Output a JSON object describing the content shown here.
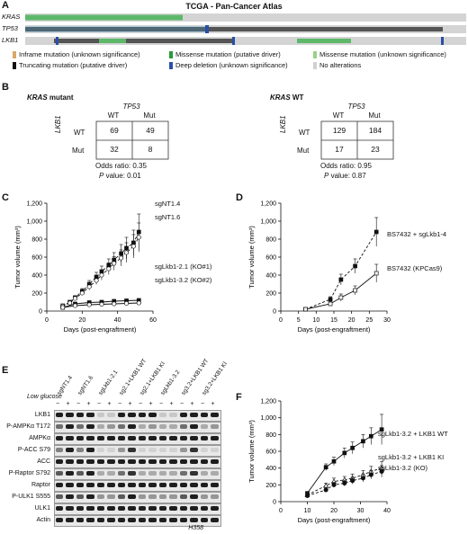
{
  "panelA": {
    "letter": "A",
    "title": "TCGA - Pan-Cancer Atlas",
    "genes": [
      "KRAS",
      "TP53",
      "LKB1"
    ],
    "legend": [
      {
        "label": "Inframe mutation (unknown significance)",
        "color": "#d9a86a"
      },
      {
        "label": "Missense mutation (putative driver)",
        "color": "#2b9a3a"
      },
      {
        "label": "Missense mutation (unknown significance)",
        "color": "#98d08a"
      },
      {
        "label": "Truncating mutation (putative driver)",
        "color": "#111111"
      },
      {
        "label": "Deep deletion (unknown significance)",
        "color": "#2a4fa8"
      },
      {
        "label": "No alterations",
        "color": "#d0d0d0"
      }
    ]
  },
  "panelB": {
    "letter": "B",
    "left": {
      "title_gene": "KRAS",
      "title_rest": " mutant",
      "col_gene": "TP53",
      "cols": [
        "WT",
        "Mut"
      ],
      "row_gene": "LKB1",
      "rows": [
        "WT",
        "Mut"
      ],
      "values": [
        [
          "69",
          "49"
        ],
        [
          "32",
          "8"
        ]
      ],
      "odds": "Odds ratio: 0.35",
      "p_label": "P",
      "p_rest": " value: 0.01"
    },
    "right": {
      "title_gene": "KRAS",
      "title_rest": " WT",
      "col_gene": "TP53",
      "cols": [
        "WT",
        "Mut"
      ],
      "row_gene": "LKB1",
      "rows": [
        "WT",
        "Mut"
      ],
      "values": [
        [
          "129",
          "184"
        ],
        [
          "17",
          "23"
        ]
      ],
      "odds": "Odds ratio: 0.95",
      "p_label": "P",
      "p_rest": " value: 0.87"
    }
  },
  "chart_data": [
    {
      "id": "C",
      "type": "line",
      "xlabel": "Days (post-engraftment)",
      "ylabel": "Tumor volume (mm³)",
      "xlim": [
        0,
        60
      ],
      "ylim": [
        0,
        1200
      ],
      "xticks": [
        0,
        20,
        40,
        60
      ],
      "yticks": [
        0,
        200,
        400,
        600,
        800,
        1000,
        1200
      ],
      "ytick_labels": [
        "0",
        "200",
        "400",
        "600",
        "800",
        "1,000",
        "1,200"
      ],
      "series": [
        {
          "name": "sgNT1.4",
          "x": [
            9,
            13,
            16,
            20,
            24,
            28,
            31,
            35,
            38,
            42,
            45,
            49,
            52
          ],
          "y": [
            60,
            100,
            150,
            220,
            300,
            380,
            440,
            510,
            570,
            640,
            700,
            760,
            880
          ],
          "err": [
            10,
            15,
            20,
            30,
            40,
            50,
            60,
            70,
            80,
            100,
            120,
            140,
            200
          ],
          "marker": "square"
        },
        {
          "name": "sgNT1.6",
          "x": [
            9,
            13,
            16,
            20,
            24,
            28,
            31,
            35,
            38,
            42,
            45,
            49,
            52
          ],
          "y": [
            55,
            90,
            140,
            200,
            270,
            340,
            400,
            470,
            530,
            590,
            650,
            720,
            820
          ],
          "err": [
            10,
            15,
            20,
            25,
            35,
            45,
            55,
            65,
            75,
            90,
            110,
            130,
            160
          ],
          "marker": "circle"
        },
        {
          "name": "sgLkb1-2.1 (KO#1)",
          "x": [
            9,
            16,
            24,
            31,
            38,
            45,
            52
          ],
          "y": [
            40,
            80,
            95,
            100,
            110,
            115,
            120
          ],
          "err": [
            8,
            10,
            12,
            12,
            14,
            14,
            15
          ],
          "marker": "square"
        },
        {
          "name": "sgLkb1-3.2 (KO#2)",
          "x": [
            9,
            16,
            24,
            31,
            38,
            45,
            52
          ],
          "y": [
            40,
            60,
            70,
            75,
            80,
            85,
            90
          ],
          "err": [
            8,
            8,
            10,
            10,
            10,
            12,
            12
          ],
          "marker": "circle"
        }
      ]
    },
    {
      "id": "D",
      "type": "line",
      "xlabel": "Days (post-engraftment)",
      "ylabel": "Tumor volume (mm³)",
      "xlim": [
        0,
        30
      ],
      "ylim": [
        0,
        1200
      ],
      "xticks": [
        0,
        5,
        10,
        15,
        20,
        25,
        30
      ],
      "yticks": [
        0,
        200,
        400,
        600,
        800,
        1000,
        1200
      ],
      "ytick_labels": [
        "0",
        "200",
        "400",
        "600",
        "800",
        "1,000",
        "1,200"
      ],
      "series": [
        {
          "name": "BS7432 + sgLkb1-4",
          "x": [
            7,
            14,
            17,
            21,
            27
          ],
          "y": [
            20,
            130,
            350,
            500,
            880
          ],
          "err": [
            5,
            30,
            60,
            80,
            160
          ],
          "marker": "square"
        },
        {
          "name": "BS7432 (KPCas9)",
          "x": [
            7,
            14,
            17,
            21,
            27
          ],
          "y": [
            20,
            80,
            150,
            230,
            420
          ],
          "err": [
            5,
            20,
            40,
            50,
            100
          ],
          "marker": "square"
        }
      ]
    },
    {
      "id": "F",
      "type": "line",
      "xlabel": "Days (post-engraftment)",
      "ylabel": "Tumor volume (mm³)",
      "xlim": [
        0,
        40
      ],
      "ylim": [
        0,
        1200
      ],
      "xticks": [
        0,
        10,
        20,
        30,
        40
      ],
      "yticks": [
        0,
        200,
        400,
        600,
        800,
        1000,
        1200
      ],
      "ytick_labels": [
        "0",
        "200",
        "400",
        "600",
        "800",
        "1,000",
        "1,200"
      ],
      "series": [
        {
          "name": "sgLkb1-3.2 + LKB1 WT",
          "x": [
            10,
            17,
            20,
            24,
            27,
            31,
            34,
            38
          ],
          "y": [
            100,
            410,
            480,
            580,
            640,
            720,
            780,
            860
          ],
          "err": [
            20,
            40,
            50,
            60,
            70,
            80,
            100,
            180
          ],
          "marker": "square"
        },
        {
          "name": "sgLkb1-3.2 + LKB1 KI",
          "x": [
            10,
            17,
            20,
            24,
            27,
            31,
            34,
            38
          ],
          "y": [
            80,
            190,
            240,
            260,
            280,
            320,
            360,
            400
          ],
          "err": [
            15,
            30,
            40,
            40,
            50,
            50,
            60,
            80
          ],
          "marker": "triangle"
        },
        {
          "name": "sgLkb1-3.2 (KO)",
          "x": [
            10,
            17,
            20,
            24,
            27,
            31,
            34,
            38
          ],
          "y": [
            70,
            140,
            200,
            220,
            250,
            280,
            320,
            360
          ],
          "err": [
            15,
            25,
            30,
            35,
            40,
            45,
            50,
            70
          ],
          "marker": "circle"
        }
      ]
    }
  ],
  "panelC": {
    "letter": "C",
    "labels": [
      "sgNT1.4",
      "sgNT1.6",
      "sgLkb1-2.1 (KO#1)",
      "sgLkb1-3.2 (KO#2)"
    ]
  },
  "panelD": {
    "letter": "D",
    "labels": [
      "BS7432 + sgLkb1-4",
      "BS7432 (KPCas9)"
    ]
  },
  "panelF": {
    "letter": "F",
    "labels": [
      "sgLkb1-3.2 + LKB1 WT",
      "sgLkb1-3.2 + LKB1 KI",
      "sgLkb1-3.2 (KO)"
    ]
  },
  "panelE": {
    "letter": "E",
    "lanes": [
      "sgNT1.4",
      "sgNT1.6",
      "sgLkb1-2.1",
      "sg2.1+LKB1 WT",
      "sg2.1+LKB1 KI",
      "sgLkb1-3.2",
      "sg3.2+LKB1 WT",
      "sg3.2+LKB1 KI"
    ],
    "glucose_label": "Low glucose",
    "signs": [
      "−",
      "+",
      "−",
      "+",
      "−",
      "+",
      "−",
      "+",
      "−",
      "+",
      "−",
      "+",
      "−",
      "+",
      "−",
      "+"
    ],
    "blots": [
      "LKB1",
      "P-AMPKα T172",
      "AMPKα",
      "P-ACC S79",
      "ACC",
      "P-Raptor S792",
      "Raptor",
      "P-ULK1 S555",
      "ULK1",
      "Actin"
    ],
    "cell_line": "H358"
  }
}
